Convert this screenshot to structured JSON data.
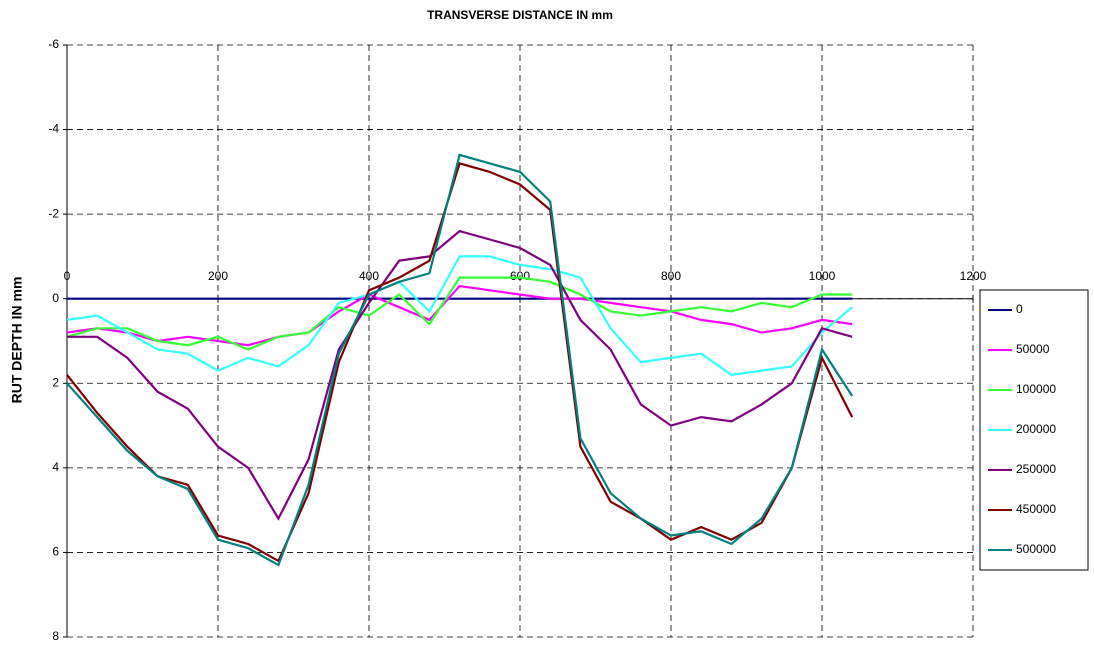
{
  "chart_data": {
    "type": "line",
    "title": "TRANSVERSE DISTANCE IN mm",
    "y_label": "RUT DEPTH IN mm",
    "x": [
      0,
      40,
      80,
      120,
      160,
      200,
      240,
      280,
      320,
      360,
      400,
      440,
      480,
      520,
      560,
      600,
      640,
      680,
      720,
      760,
      800,
      840,
      880,
      920,
      960,
      1000,
      1040
    ],
    "series": [
      {
        "name": "0",
        "color": "#000080",
        "values": [
          0,
          0,
          0,
          0,
          0,
          0,
          0,
          0,
          0,
          0,
          0,
          0,
          0,
          0,
          0,
          0,
          0,
          0,
          0,
          0,
          0,
          0,
          0,
          0,
          0,
          0,
          0
        ]
      },
      {
        "name": "50000",
        "color": "#ff00ff",
        "values": [
          0.8,
          0.7,
          0.8,
          1.0,
          0.9,
          1.0,
          1.1,
          0.9,
          0.8,
          0.3,
          -0.1,
          0.2,
          0.5,
          -0.3,
          -0.2,
          -0.1,
          0.0,
          0.0,
          0.1,
          0.2,
          0.3,
          0.5,
          0.6,
          0.8,
          0.7,
          0.5,
          0.6
        ]
      },
      {
        "name": "100000",
        "color": "#33ff33",
        "values": [
          0.9,
          0.7,
          0.7,
          1.0,
          1.1,
          0.9,
          1.2,
          0.9,
          0.8,
          0.2,
          0.4,
          -0.1,
          0.6,
          -0.5,
          -0.5,
          -0.5,
          -0.4,
          -0.1,
          0.3,
          0.4,
          0.3,
          0.2,
          0.3,
          0.1,
          0.2,
          -0.1,
          -0.1
        ]
      },
      {
        "name": "200000",
        "color": "#33ffff",
        "values": [
          0.5,
          0.4,
          0.8,
          1.2,
          1.3,
          1.7,
          1.4,
          1.6,
          1.1,
          0.1,
          -0.1,
          -0.4,
          0.3,
          -1.0,
          -1.0,
          -0.8,
          -0.7,
          -0.5,
          0.7,
          1.5,
          1.4,
          1.3,
          1.8,
          1.7,
          1.6,
          0.8,
          0.2
        ]
      },
      {
        "name": "250000",
        "color": "#800080",
        "values": [
          0.9,
          0.9,
          1.4,
          2.2,
          2.6,
          3.5,
          4.0,
          5.2,
          3.8,
          1.2,
          0.1,
          -0.9,
          -1.0,
          -1.6,
          -1.4,
          -1.2,
          -0.8,
          0.5,
          1.2,
          2.5,
          3.0,
          2.8,
          2.9,
          2.5,
          2.0,
          0.7,
          0.9
        ]
      },
      {
        "name": "450000",
        "color": "#800000",
        "values": [
          1.8,
          2.7,
          3.5,
          4.2,
          4.4,
          5.6,
          5.8,
          6.2,
          4.6,
          1.5,
          -0.2,
          -0.5,
          -0.9,
          -3.2,
          -3.0,
          -2.7,
          -2.1,
          3.5,
          4.8,
          5.2,
          5.7,
          5.4,
          5.7,
          5.3,
          4.0,
          1.4,
          2.8
        ]
      },
      {
        "name": "500000",
        "color": "#008080",
        "values": [
          2.0,
          2.8,
          3.6,
          4.2,
          4.5,
          5.7,
          5.9,
          6.3,
          4.4,
          1.3,
          -0.1,
          -0.4,
          -0.6,
          -3.4,
          -3.2,
          -3.0,
          -2.3,
          3.3,
          4.6,
          5.2,
          5.6,
          5.5,
          5.8,
          5.2,
          4.0,
          1.2,
          2.3
        ]
      }
    ],
    "xlim": [
      0,
      1200
    ],
    "xticks": [
      0,
      200,
      400,
      600,
      800,
      1000,
      1200
    ],
    "ylim": [
      8,
      -6
    ],
    "yticks": [
      -6,
      -4,
      -2,
      0,
      2,
      4,
      6,
      8
    ],
    "grid": true,
    "legend": "right"
  }
}
